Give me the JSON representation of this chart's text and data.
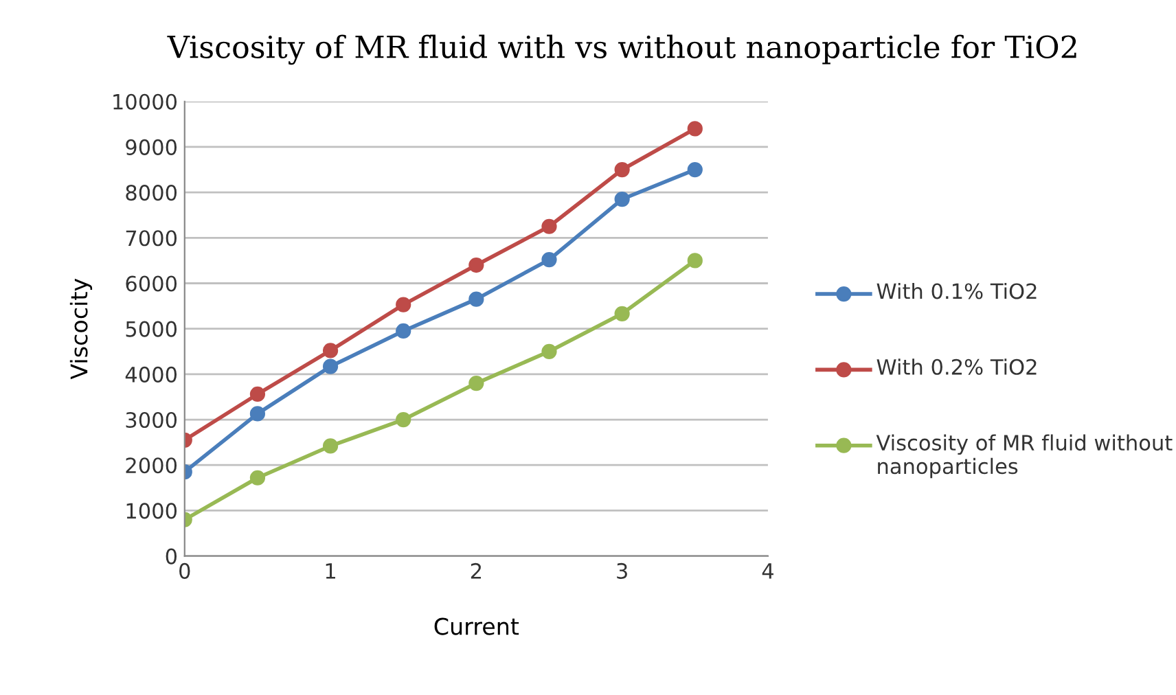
{
  "chart_data": {
    "type": "line",
    "title": "Viscosity of MR fluid with vs without nanoparticle for TiO2",
    "xlabel": "Current",
    "ylabel": "Viscocity",
    "x": [
      0,
      0.5,
      1,
      1.5,
      2,
      2.5,
      3,
      3.5
    ],
    "series": [
      {
        "name": "With 0.1% TiO2",
        "color": "#4a7ebb",
        "values": [
          1850,
          3130,
          4170,
          4950,
          5650,
          6520,
          7850,
          8500
        ]
      },
      {
        "name": "With 0.2% TiO2",
        "color": "#be4b48",
        "values": [
          2550,
          3560,
          4520,
          5530,
          6400,
          7250,
          8500,
          9400
        ]
      },
      {
        "name": "Viscosity of MR fluid without nanoparticles",
        "color": "#98b954",
        "values": [
          800,
          1720,
          2420,
          3000,
          3800,
          4500,
          5330,
          6500
        ]
      }
    ],
    "xlim": [
      0,
      4
    ],
    "xticks": [
      0,
      1,
      2,
      3,
      4
    ],
    "ylim": [
      0,
      10000
    ],
    "yticks": [
      0,
      1000,
      2000,
      3000,
      4000,
      5000,
      6000,
      7000,
      8000,
      9000,
      10000
    ],
    "grid": "y",
    "legend": "right",
    "marker": "circle",
    "line_style": "solid"
  }
}
